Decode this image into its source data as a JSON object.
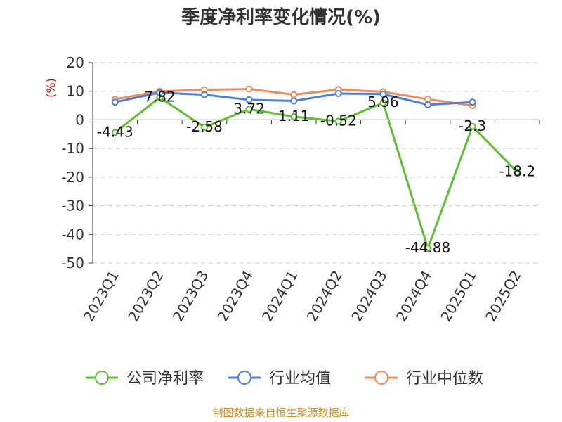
{
  "chart_data": {
    "type": "line",
    "title": "季度净利率变化情况(%)",
    "ylabel": "(%)",
    "ylim": [
      -50,
      20
    ],
    "yticks": [
      20,
      10,
      0,
      -10,
      -20,
      -30,
      -40,
      -50
    ],
    "grid": true,
    "legend_position": "bottom",
    "categories": [
      "2023Q1",
      "2023Q2",
      "2023Q3",
      "2023Q4",
      "2024Q1",
      "2024Q2",
      "2024Q3",
      "2024Q4",
      "2025Q1",
      "2025Q2"
    ],
    "series": [
      {
        "name": "公司净利率",
        "color": "#5cc02e",
        "values": [
          -4.43,
          7.82,
          -2.58,
          3.72,
          1.11,
          -0.52,
          5.96,
          -44.88,
          -2.3,
          -18.2
        ],
        "labels": [
          "-4.43",
          "7.82",
          "-2.58",
          "3.72",
          "1.11",
          "-0.52",
          "5.96",
          "-44.88",
          "-2.3",
          "-18.2"
        ]
      },
      {
        "name": "行业均值",
        "color": "#4a7fdc",
        "values": [
          6.2,
          9.5,
          8.8,
          7.0,
          6.6,
          9.2,
          9.0,
          5.3,
          6.2,
          null
        ]
      },
      {
        "name": "行业中位数",
        "color": "#f08c5a",
        "values": [
          7.2,
          10.0,
          10.5,
          10.8,
          8.8,
          10.6,
          9.8,
          7.2,
          5.0,
          null
        ]
      }
    ]
  },
  "footer": {
    "source": "制图数据来自恒生聚源数据库"
  }
}
